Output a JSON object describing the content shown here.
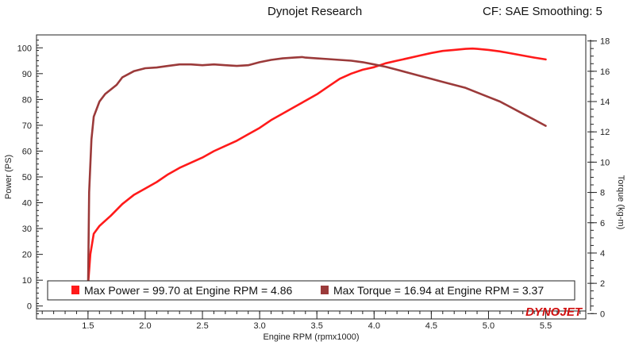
{
  "header": {
    "title": "Dynojet Research",
    "cf_info": "CF: SAE Smoothing: 5"
  },
  "logo": {
    "text": "DYNOJET",
    "color": "#d01010"
  },
  "chart_data": {
    "type": "line",
    "xlabel": "Engine RPM (rpmx1000)",
    "ylabel_left": "Power (PS)",
    "ylabel_right": "Torque (kg-m)",
    "xlim": [
      1.05,
      5.85
    ],
    "ylim_left": [
      -5,
      105
    ],
    "ylim_right": [
      -0.35,
      18.4
    ],
    "x_ticks": [
      1.5,
      2.0,
      2.5,
      3.0,
      3.5,
      4.0,
      4.5,
      5.0,
      5.5
    ],
    "x_tick_labels": [
      "1.5",
      "2.0",
      "2.5",
      "3.0",
      "3.5",
      "4.0",
      "4.5",
      "5.0",
      "5.5"
    ],
    "y_left_ticks": [
      0,
      10,
      20,
      30,
      40,
      50,
      60,
      70,
      80,
      90,
      100
    ],
    "y_left_tick_labels": [
      "0",
      "10",
      "20",
      "30",
      "40",
      "50",
      "60",
      "70",
      "80",
      "90",
      "100"
    ],
    "y_right_ticks": [
      0,
      2,
      4,
      6,
      8,
      10,
      12,
      14,
      16,
      18
    ],
    "y_right_tick_labels": [
      "0",
      "2",
      "4",
      "6",
      "8",
      "10",
      "12",
      "14",
      "16",
      "18"
    ],
    "grid": false,
    "series": [
      {
        "name": "Power",
        "axis": "left",
        "color": "#ff1a1a",
        "x": [
          1.5,
          1.52,
          1.55,
          1.6,
          1.7,
          1.8,
          1.9,
          2.0,
          2.1,
          2.2,
          2.3,
          2.4,
          2.5,
          2.6,
          2.7,
          2.8,
          2.9,
          3.0,
          3.1,
          3.2,
          3.3,
          3.4,
          3.5,
          3.6,
          3.7,
          3.8,
          3.9,
          4.0,
          4.1,
          4.2,
          4.3,
          4.4,
          4.5,
          4.6,
          4.7,
          4.8,
          4.86,
          4.9,
          5.0,
          5.1,
          5.2,
          5.3,
          5.4,
          5.5
        ],
        "values": [
          8,
          20,
          28,
          31,
          35,
          39.5,
          43,
          45.5,
          48,
          51,
          53.5,
          55.5,
          57.5,
          60,
          62,
          64,
          66.5,
          69,
          72,
          74.5,
          77,
          79.5,
          82,
          85,
          88,
          90,
          91.5,
          92.5,
          94,
          95,
          96,
          97,
          98,
          98.8,
          99.2,
          99.6,
          99.7,
          99.6,
          99.2,
          98.6,
          97.8,
          97,
          96.2,
          95.5
        ]
      },
      {
        "name": "Torque",
        "axis": "right",
        "color": "#9b3a3a",
        "x": [
          1.5,
          1.51,
          1.53,
          1.55,
          1.6,
          1.65,
          1.7,
          1.75,
          1.8,
          1.9,
          2.0,
          2.1,
          2.2,
          2.3,
          2.4,
          2.5,
          2.6,
          2.7,
          2.8,
          2.9,
          3.0,
          3.1,
          3.2,
          3.3,
          3.37,
          3.4,
          3.5,
          3.6,
          3.7,
          3.8,
          3.9,
          4.0,
          4.1,
          4.2,
          4.3,
          4.4,
          4.5,
          4.6,
          4.7,
          4.8,
          4.9,
          5.0,
          5.1,
          5.2,
          5.3,
          5.4,
          5.5
        ],
        "values": [
          1.5,
          8,
          11.5,
          13,
          14,
          14.5,
          14.8,
          15.1,
          15.6,
          16.0,
          16.2,
          16.25,
          16.35,
          16.45,
          16.45,
          16.4,
          16.45,
          16.4,
          16.35,
          16.4,
          16.6,
          16.75,
          16.85,
          16.9,
          16.94,
          16.9,
          16.85,
          16.8,
          16.75,
          16.7,
          16.6,
          16.45,
          16.3,
          16.1,
          15.9,
          15.7,
          15.5,
          15.3,
          15.1,
          14.9,
          14.6,
          14.3,
          14.0,
          13.6,
          13.2,
          12.8,
          12.4
        ]
      }
    ],
    "legend": {
      "placement": "bottom",
      "entries": [
        {
          "color": "#ff1a1a",
          "text": "Max Power = 99.70 at Engine RPM = 4.86"
        },
        {
          "color": "#9b3a3a",
          "text": "Max Torque = 16.94 at Engine RPM = 3.37"
        }
      ]
    }
  }
}
